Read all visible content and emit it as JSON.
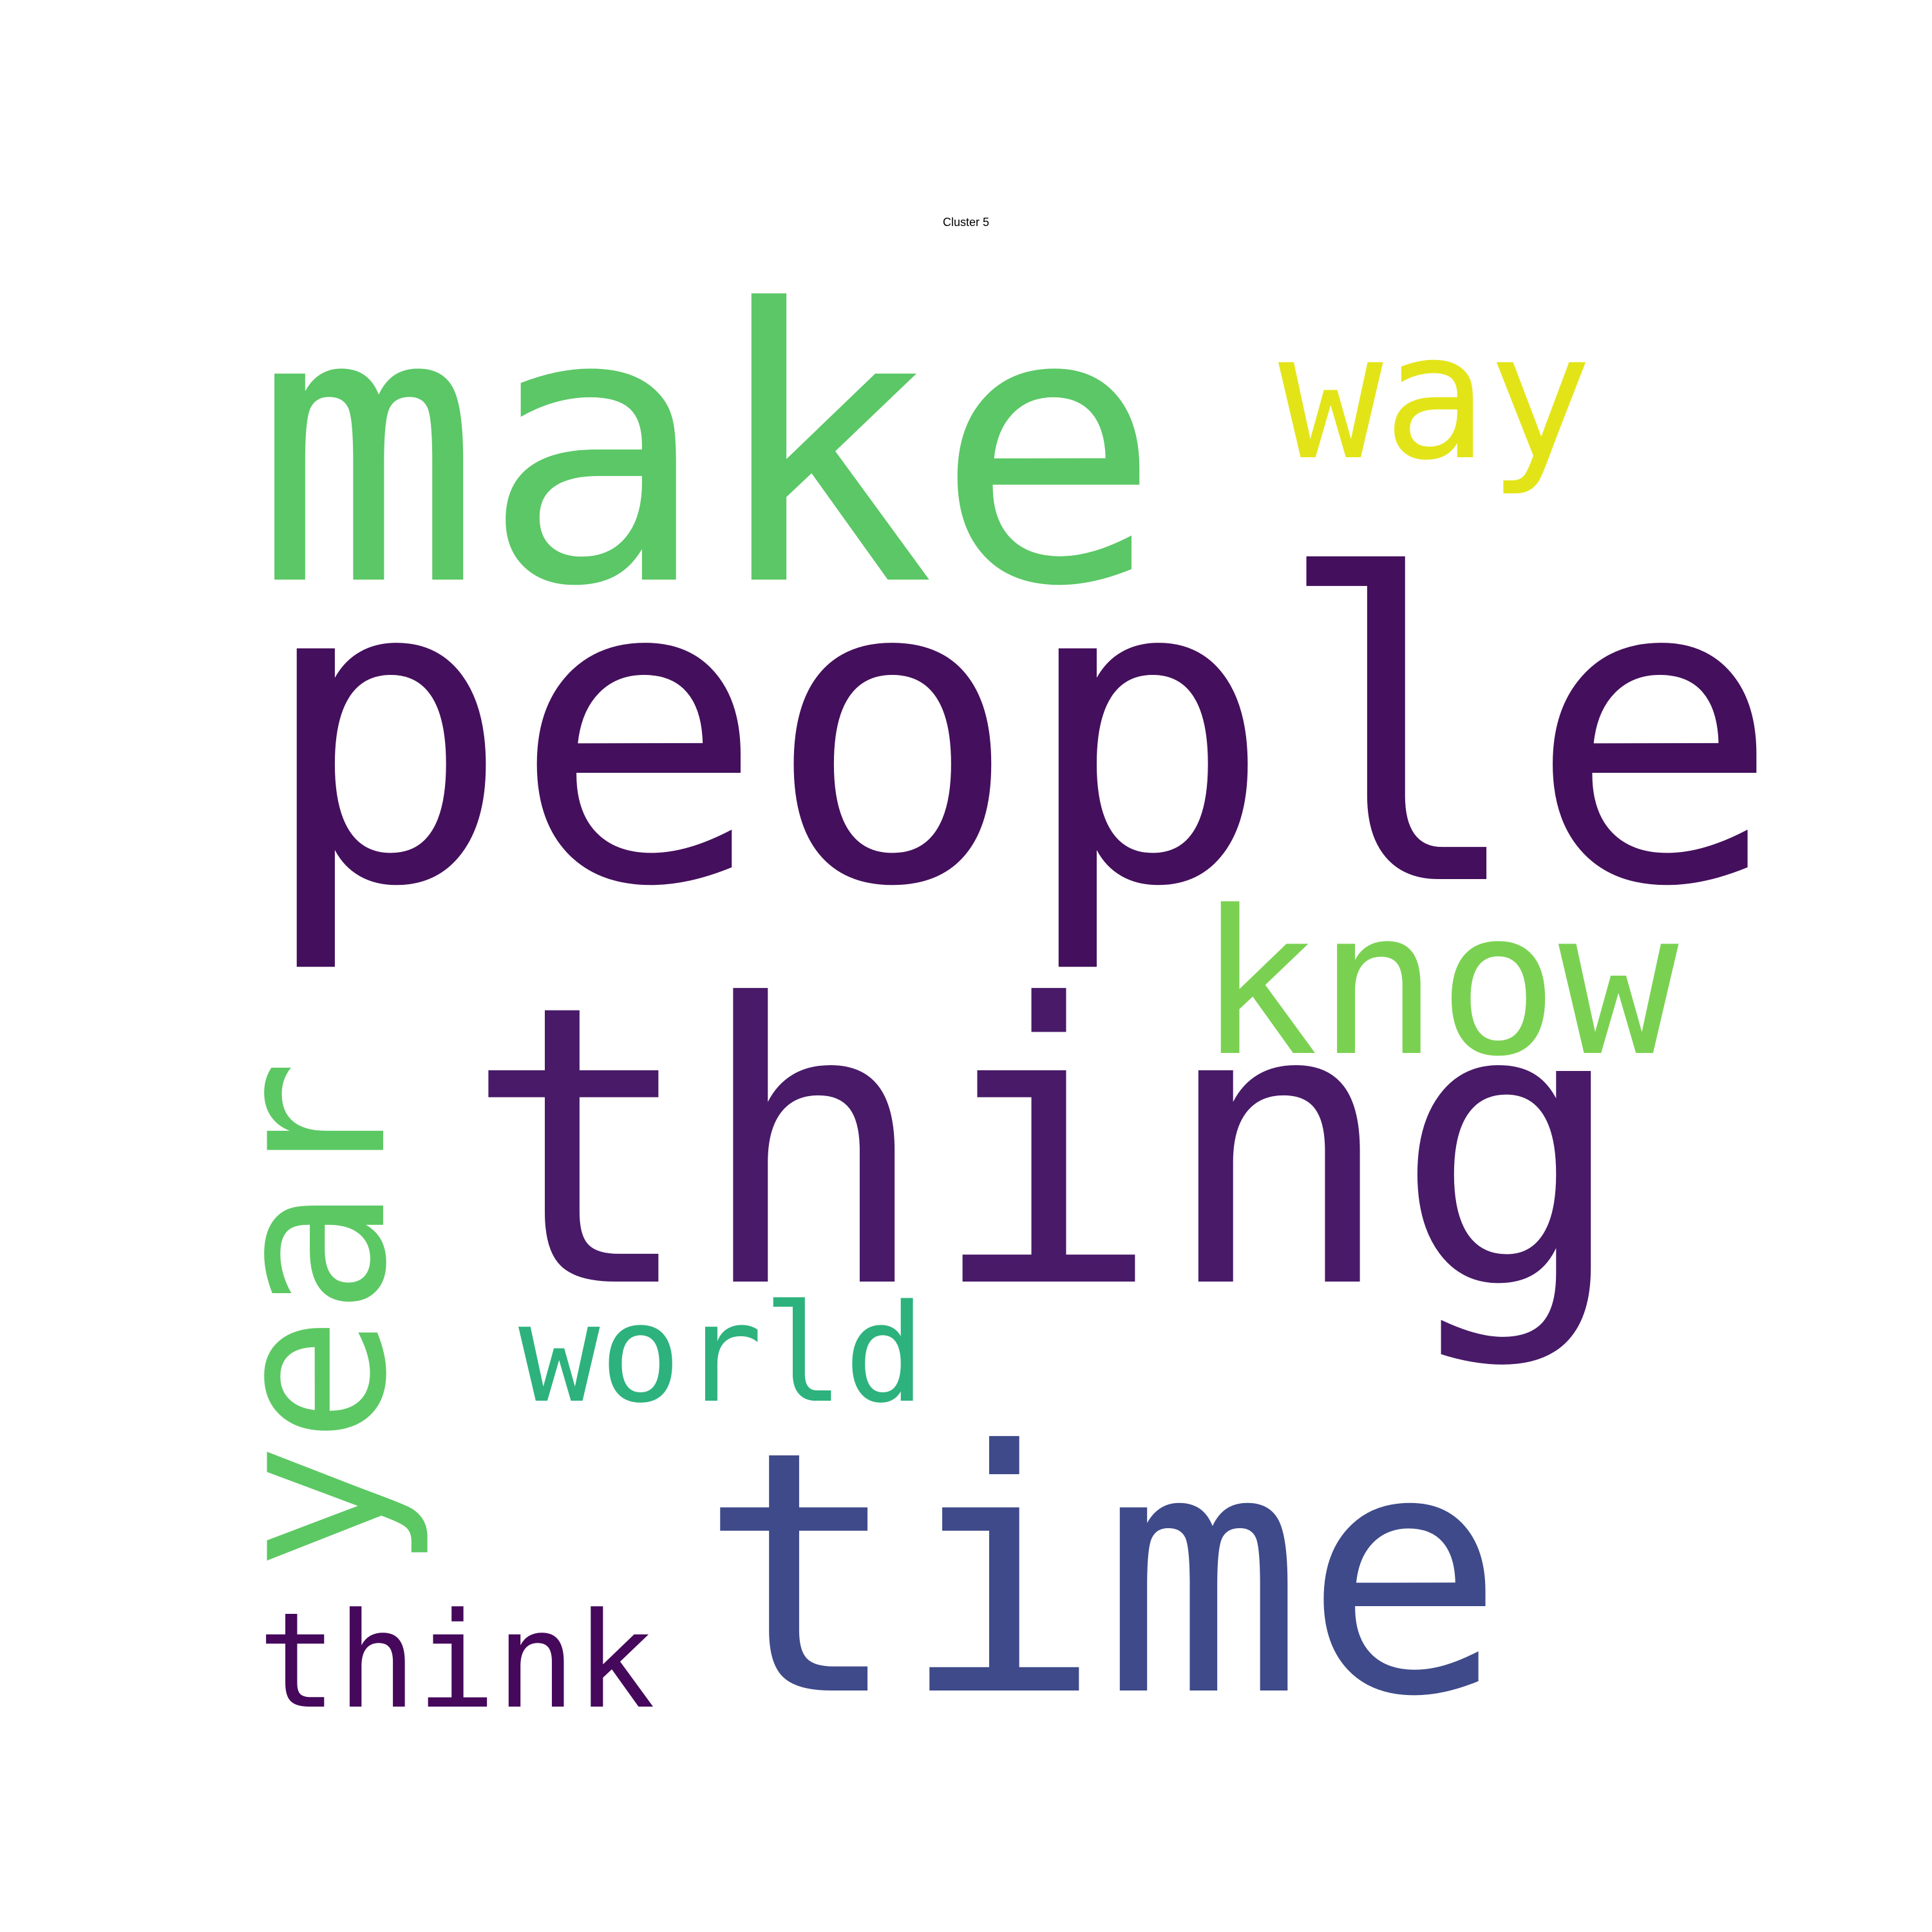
{
  "chart_data": {
    "type": "wordcloud",
    "title": "Cluster 5",
    "words": [
      {
        "text": "people",
        "weight": 1.0,
        "color": "#440f5c"
      },
      {
        "text": "thing",
        "weight": 0.93,
        "color": "#481a68"
      },
      {
        "text": "time",
        "weight": 0.8,
        "color": "#3e4a89"
      },
      {
        "text": "make",
        "weight": 0.9,
        "color": "#5bc766"
      },
      {
        "text": "year",
        "weight": 0.5,
        "color": "#5cc863"
      },
      {
        "text": "know",
        "weight": 0.48,
        "color": "#7ad151"
      },
      {
        "text": "way",
        "weight": 0.42,
        "color": "#e3e418"
      },
      {
        "text": "world",
        "weight": 0.33,
        "color": "#2db27d"
      },
      {
        "text": "think",
        "weight": 0.32,
        "color": "#45085b"
      }
    ]
  }
}
